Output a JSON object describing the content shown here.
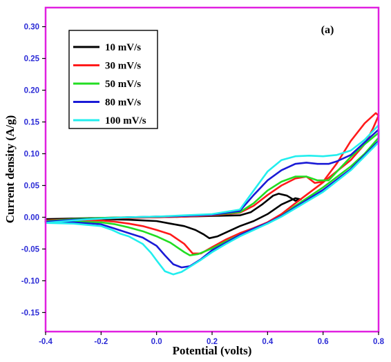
{
  "chart_data": {
    "type": "line",
    "panel_label": "(a)",
    "xlabel": "Potential (volts)",
    "ylabel": "Current density (A/g)",
    "xlim": [
      -0.4,
      0.8
    ],
    "ylim": [
      -0.18,
      0.33
    ],
    "x_ticks": [
      "-0.4",
      "-0.2",
      "0.0",
      "0.2",
      "0.4",
      "0.6",
      "0.8"
    ],
    "y_ticks": [
      "-0.15",
      "-0.10",
      "-0.05",
      "0.00",
      "0.05",
      "0.10",
      "0.15",
      "0.20",
      "0.25",
      "0.30"
    ],
    "x_tick_values": [
      -0.4,
      -0.2,
      0.0,
      0.2,
      0.4,
      0.6,
      0.8
    ],
    "y_tick_values": [
      -0.15,
      -0.1,
      -0.05,
      0.0,
      0.05,
      0.1,
      0.15,
      0.2,
      0.25,
      0.3
    ],
    "grid": false,
    "legend_position": "top-left",
    "frame_color": "#e020e0",
    "tick_label_color": "#2a2ad6",
    "series": [
      {
        "name": "10 mV/s",
        "color": "#000000",
        "x": [
          -0.4,
          -0.3,
          -0.2,
          -0.1,
          -0.05,
          0.0,
          0.05,
          0.1,
          0.14,
          0.17,
          0.19,
          0.22,
          0.26,
          0.3,
          0.35,
          0.4,
          0.45,
          0.5,
          0.52,
          0.5,
          0.47,
          0.44,
          0.42,
          0.38,
          0.34,
          0.3,
          0.2,
          0.1,
          0.0,
          -0.1,
          -0.2,
          -0.3,
          -0.4
        ],
        "y": [
          -0.003,
          -0.003,
          -0.003,
          -0.004,
          -0.005,
          -0.006,
          -0.01,
          -0.014,
          -0.02,
          -0.027,
          -0.033,
          -0.03,
          -0.022,
          -0.014,
          -0.006,
          0.005,
          0.02,
          0.03,
          0.028,
          0.026,
          0.034,
          0.037,
          0.034,
          0.02,
          0.008,
          0.003,
          0.002,
          0.001,
          0.0,
          0.0,
          -0.001,
          -0.002,
          -0.003
        ]
      },
      {
        "name": "30 mV/s",
        "color": "#ff1a1a",
        "x": [
          -0.4,
          -0.3,
          -0.2,
          -0.15,
          -0.1,
          -0.05,
          0.0,
          0.05,
          0.1,
          0.13,
          0.16,
          0.2,
          0.25,
          0.3,
          0.35,
          0.4,
          0.45,
          0.5,
          0.6,
          0.7,
          0.75,
          0.78,
          0.8,
          0.79,
          0.75,
          0.7,
          0.65,
          0.6,
          0.57,
          0.54,
          0.5,
          0.45,
          0.4,
          0.35,
          0.3,
          0.2,
          0.1,
          0.0,
          -0.1,
          -0.2,
          -0.3,
          -0.4
        ],
        "y": [
          -0.005,
          -0.005,
          -0.005,
          -0.007,
          -0.01,
          -0.014,
          -0.02,
          -0.027,
          -0.042,
          -0.057,
          -0.057,
          -0.047,
          -0.035,
          -0.025,
          -0.017,
          -0.008,
          0.005,
          0.022,
          0.055,
          0.09,
          0.115,
          0.14,
          0.16,
          0.164,
          0.148,
          0.12,
          0.085,
          0.056,
          0.054,
          0.064,
          0.061,
          0.05,
          0.035,
          0.018,
          0.007,
          0.003,
          0.001,
          0.0,
          -0.001,
          -0.002,
          -0.003,
          -0.005
        ]
      },
      {
        "name": "50 mV/s",
        "color": "#22dd22",
        "x": [
          -0.4,
          -0.3,
          -0.2,
          -0.15,
          -0.1,
          -0.05,
          0.0,
          0.05,
          0.1,
          0.12,
          0.15,
          0.2,
          0.25,
          0.3,
          0.35,
          0.4,
          0.45,
          0.5,
          0.6,
          0.7,
          0.75,
          0.8,
          0.8,
          0.75,
          0.7,
          0.65,
          0.62,
          0.58,
          0.54,
          0.5,
          0.45,
          0.4,
          0.35,
          0.3,
          0.2,
          0.1,
          0.0,
          -0.1,
          -0.2,
          -0.3,
          -0.4
        ],
        "y": [
          -0.007,
          -0.007,
          -0.008,
          -0.011,
          -0.016,
          -0.022,
          -0.03,
          -0.04,
          -0.055,
          -0.06,
          -0.058,
          -0.049,
          -0.038,
          -0.028,
          -0.018,
          -0.01,
          0.002,
          0.018,
          0.047,
          0.08,
          0.1,
          0.125,
          0.133,
          0.115,
          0.095,
          0.072,
          0.058,
          0.058,
          0.064,
          0.064,
          0.056,
          0.042,
          0.022,
          0.008,
          0.004,
          0.002,
          0.001,
          0.0,
          -0.001,
          -0.003,
          -0.006
        ]
      },
      {
        "name": "80 mV/s",
        "color": "#1a1ad6",
        "x": [
          -0.4,
          -0.3,
          -0.2,
          -0.15,
          -0.1,
          -0.05,
          0.0,
          0.03,
          0.06,
          0.09,
          0.12,
          0.16,
          0.2,
          0.25,
          0.3,
          0.35,
          0.4,
          0.45,
          0.5,
          0.6,
          0.7,
          0.75,
          0.8,
          0.8,
          0.75,
          0.7,
          0.65,
          0.62,
          0.58,
          0.54,
          0.5,
          0.45,
          0.4,
          0.35,
          0.3,
          0.2,
          0.1,
          0.0,
          -0.1,
          -0.2,
          -0.3,
          -0.4
        ],
        "y": [
          -0.007,
          -0.008,
          -0.011,
          -0.018,
          -0.025,
          -0.032,
          -0.045,
          -0.06,
          -0.074,
          -0.079,
          -0.077,
          -0.066,
          -0.052,
          -0.04,
          -0.028,
          -0.018,
          -0.009,
          0.002,
          0.016,
          0.043,
          0.076,
          0.098,
          0.12,
          0.138,
          0.118,
          0.098,
          0.088,
          0.084,
          0.084,
          0.086,
          0.084,
          0.074,
          0.058,
          0.035,
          0.01,
          0.004,
          0.002,
          0.001,
          0.0,
          -0.002,
          -0.004,
          -0.007
        ]
      },
      {
        "name": "100 mV/s",
        "color": "#22eeee",
        "x": [
          -0.4,
          -0.3,
          -0.2,
          -0.16,
          -0.13,
          -0.1,
          -0.05,
          -0.02,
          0.0,
          0.03,
          0.06,
          0.09,
          0.12,
          0.16,
          0.2,
          0.25,
          0.3,
          0.35,
          0.4,
          0.45,
          0.5,
          0.6,
          0.7,
          0.75,
          0.8,
          0.8,
          0.75,
          0.7,
          0.65,
          0.6,
          0.55,
          0.5,
          0.45,
          0.4,
          0.35,
          0.3,
          0.2,
          0.1,
          0.0,
          -0.1,
          -0.2,
          -0.3,
          -0.4
        ],
        "y": [
          -0.009,
          -0.01,
          -0.014,
          -0.02,
          -0.026,
          -0.03,
          -0.042,
          -0.056,
          -0.068,
          -0.085,
          -0.09,
          -0.086,
          -0.078,
          -0.067,
          -0.055,
          -0.042,
          -0.03,
          -0.02,
          -0.01,
          0.001,
          0.014,
          0.04,
          0.074,
          0.096,
          0.118,
          0.145,
          0.122,
          0.105,
          0.098,
          0.096,
          0.097,
          0.096,
          0.09,
          0.072,
          0.042,
          0.012,
          0.005,
          0.003,
          0.001,
          0.0,
          -0.002,
          -0.005,
          -0.009
        ]
      }
    ]
  }
}
